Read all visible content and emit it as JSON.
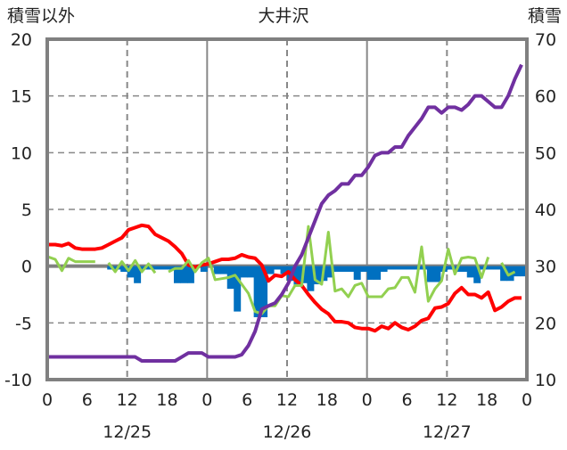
{
  "chart_data": {
    "type": "line",
    "title": "大井沢",
    "ylabel_left": "積雪以外",
    "ylabel_right": "積雪",
    "ylim_left": [
      -10,
      20
    ],
    "ylim_right": [
      10,
      70
    ],
    "yticks_left": [
      20,
      15,
      10,
      5,
      0,
      -5,
      -10
    ],
    "yticks_right": [
      70,
      60,
      50,
      40,
      30,
      20,
      10
    ],
    "xlim_hours": [
      0,
      72
    ],
    "xtick_labels": [
      "0",
      "6",
      "12",
      "18",
      "0",
      "6",
      "12",
      "18",
      "0",
      "6",
      "12",
      "18",
      "0"
    ],
    "date_labels": [
      "12/25",
      "12/26",
      "12/27"
    ],
    "grid": "dashed vertical at 12h, horizontal every 5",
    "series": [
      {
        "name": "red",
        "axis": "left",
        "type": "line",
        "color": "#ff0000",
        "values": [
          1.9,
          1.9,
          1.8,
          2.0,
          1.6,
          1.5,
          1.5,
          1.5,
          1.6,
          1.9,
          2.2,
          2.5,
          3.2,
          3.4,
          3.6,
          3.5,
          2.8,
          2.5,
          2.2,
          1.7,
          1.1,
          0.1,
          -0.1,
          0.1,
          0.2,
          0.4,
          0.6,
          0.6,
          0.7,
          1.0,
          0.8,
          0.7,
          0.1,
          -1.3,
          -0.8,
          -0.9,
          -0.5,
          -1.2,
          -1.7,
          -2.5,
          -3.2,
          -3.8,
          -4.2,
          -4.9,
          -4.9,
          -5.0,
          -5.4,
          -5.5,
          -5.5,
          -5.7,
          -5.3,
          -5.5,
          -5.0,
          -5.4,
          -5.6,
          -5.3,
          -4.8,
          -4.6,
          -3.7,
          -3.6,
          -3.3,
          -2.4,
          -1.9,
          -2.5,
          -2.5,
          -2.8,
          -2.3,
          -3.9,
          -3.6,
          -3.1,
          -2.8,
          -2.8
        ]
      },
      {
        "name": "green",
        "axis": "left",
        "type": "line",
        "color": "#92d050",
        "values": [
          0.8,
          0.6,
          -0.4,
          0.7,
          0.4,
          0.4,
          0.4,
          0.4,
          null,
          0.3,
          -0.5,
          0.4,
          -0.4,
          0.5,
          -0.5,
          0.2,
          -0.6,
          null,
          -0.5,
          -0.2,
          -0.2,
          0.5,
          -0.5,
          0.3,
          0.7,
          -1.2,
          -1.1,
          -1.0,
          -0.8,
          -1.6,
          -2.4,
          -4.0,
          -4.2,
          -3.5,
          -3.5,
          -2.6,
          -2.7,
          -1.7,
          -1.7,
          3.5,
          -1.2,
          -1.6,
          3.0,
          -2.2,
          -2.0,
          -2.7,
          -1.7,
          -1.5,
          -2.7,
          -2.7,
          -2.7,
          -2.0,
          -1.9,
          -1.0,
          -1.0,
          -2.3,
          1.7,
          -3.1,
          -2.0,
          -1.3,
          1.5,
          -0.7,
          0.7,
          0.8,
          0.7,
          -1.0,
          0.8,
          null,
          0.3,
          -0.8,
          -0.5,
          null
        ]
      },
      {
        "name": "blue",
        "axis": "left",
        "type": "bar",
        "color": "#0070c0",
        "values": [
          0,
          0,
          0,
          0,
          0,
          0,
          0,
          0,
          0,
          -0.3,
          -0.3,
          -0.5,
          -1.0,
          -1.5,
          -0.3,
          -0.3,
          -0.3,
          -0.3,
          -0.3,
          -1.5,
          -1.5,
          -1.5,
          0,
          -0.5,
          0,
          -0.7,
          -0.7,
          -2.0,
          -4.0,
          -1.0,
          -1.0,
          -4.5,
          -4.5,
          -0.7,
          -0.3,
          -0.7,
          -1.3,
          -1.8,
          -1.5,
          -2.2,
          -1.6,
          -1.3,
          -1.0,
          -0.5,
          -0.5,
          -0.5,
          -1.2,
          -0.5,
          -1.2,
          -1.2,
          -0.5,
          -0.3,
          -0.3,
          -0.3,
          -0.3,
          -0.3,
          -0.3,
          -1.4,
          -1.4,
          -0.5,
          -0.3,
          -0.5,
          -0.5,
          -1.0,
          -1.5,
          -0.3,
          -0.3,
          -0.3,
          -1.3,
          -1.3,
          -0.9,
          -0.9
        ]
      },
      {
        "name": "purple",
        "axis": "right",
        "type": "line",
        "color": "#7030a0",
        "values": [
          14,
          14,
          14,
          14,
          14,
          14,
          14,
          14,
          14,
          14,
          14,
          14,
          14,
          14,
          13.3,
          13.3,
          13.3,
          13.3,
          13.3,
          13.3,
          14,
          14.7,
          14.7,
          14.7,
          14,
          14,
          14,
          14,
          14,
          14.4,
          16,
          18.5,
          22.4,
          23,
          23.5,
          25,
          27,
          30,
          32,
          35,
          38,
          41,
          42.5,
          43.3,
          44.5,
          44.5,
          46,
          46,
          47.5,
          49.5,
          50,
          50,
          51,
          51,
          53,
          54.5,
          56,
          58,
          58,
          57,
          58,
          58,
          57.5,
          58.5,
          60,
          60,
          59,
          58,
          58,
          60,
          63,
          65.5
        ]
      }
    ]
  }
}
